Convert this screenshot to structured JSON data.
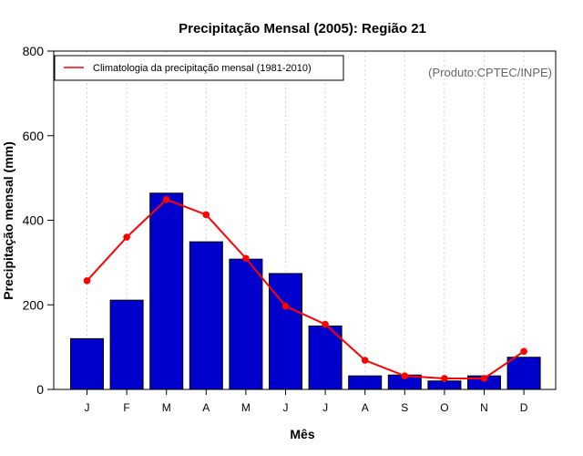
{
  "chart_data": {
    "type": "bar",
    "title": "Precipitação Mensal (2005): Região 21",
    "xlabel": "Mês",
    "ylabel": "Precipitação mensal (mm)",
    "ylim": [
      0,
      800
    ],
    "yticks": [
      0,
      200,
      400,
      600,
      800
    ],
    "categories": [
      "J",
      "F",
      "M",
      "A",
      "M",
      "J",
      "J",
      "A",
      "S",
      "O",
      "N",
      "D"
    ],
    "series": [
      {
        "name": "Precipitação mensal 2005",
        "type": "bar",
        "color": "#0000CC",
        "values": [
          120,
          211,
          464,
          349,
          308,
          274,
          150,
          32,
          34,
          20,
          32,
          76
        ]
      },
      {
        "name": "Climatologia da precipitação mensal (1981-2010)",
        "type": "line",
        "color": "#FF0000",
        "values": [
          257,
          360,
          449,
          413,
          310,
          197,
          154,
          69,
          32,
          26,
          26,
          90
        ]
      }
    ],
    "legend": [
      "Climatologia da precipitação mensal (1981-2010)"
    ],
    "legend_position": "top-left",
    "annotation": "(Produto:CPTEC/INPE)",
    "grid": "vertical dotted"
  }
}
